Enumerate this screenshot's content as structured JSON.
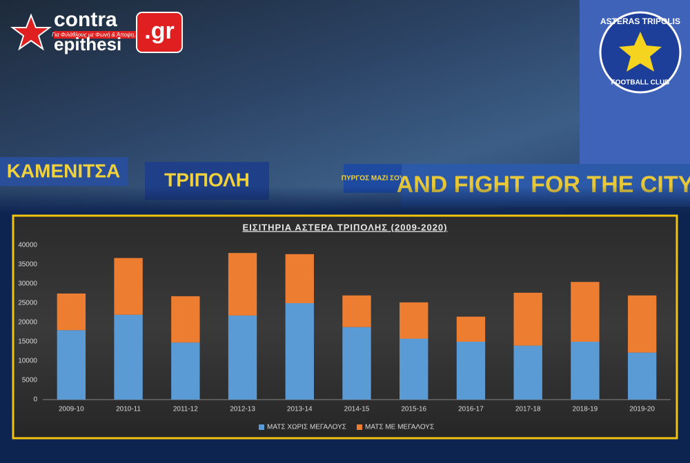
{
  "branding": {
    "name_top": "contra",
    "name_bottom": "epithesi",
    "domain": ".gr",
    "slogan": "Για Φιλάθλους με Φωνή & Άποψη..!"
  },
  "club_logo": {
    "top": "ASTERAS TRIPOLIS",
    "bottom": "FOOTBALL CLUB"
  },
  "banners": [
    "ΚΑΜΕΝΙΤΣΑ",
    "ΤΡΙΠΟΛΗ",
    "ΠΥΡΓΟΣ ΜΑΖΙ ΣΟΥ",
    "AND FIGHT FOR THE CITY"
  ],
  "chart_data": {
    "type": "stacked_bar",
    "title": "ΕΙΣΙΤΗΡΙΑ ΑΣΤΕΡΑ ΤΡΙΠΟΛΗΣ (2009-2020)",
    "categories": [
      "2009-10",
      "2010-11",
      "2011-12",
      "2012-13",
      "2013-14",
      "2014-15",
      "2015-16",
      "2016-17",
      "2017-18",
      "2018-19",
      "2019-20"
    ],
    "series": [
      {
        "name": "ΜΑΤΣ ΧΩΡΙΣ ΜΕΓΑΛΟΥΣ",
        "color": "#5b9bd5",
        "values": [
          18000,
          22000,
          14800,
          21800,
          25000,
          18800,
          15800,
          15000,
          14000,
          15000,
          12200
        ]
      },
      {
        "name": "ΜΑΤΣ ΜΕ ΜΕΓΑΛΟΥΣ",
        "color": "#ed7d31",
        "values": [
          9500,
          14700,
          12000,
          16200,
          12700,
          8200,
          9400,
          6500,
          13700,
          15500,
          14800
        ]
      }
    ],
    "ylim": [
      0,
      40000
    ],
    "yticks": [
      0,
      5000,
      10000,
      15000,
      20000,
      25000,
      30000,
      35000,
      40000
    ],
    "grid": false,
    "legend": "bottom"
  }
}
